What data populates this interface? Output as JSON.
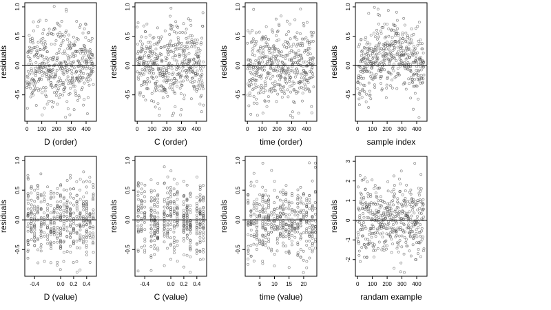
{
  "chart_data": [
    {
      "type": "scatter",
      "xlabel": "D (order)",
      "ylabel": "residuals",
      "xlim": [
        -15,
        470
      ],
      "ylim": [
        -0.95,
        1.07
      ],
      "xticks": [
        0,
        100,
        200,
        300,
        400
      ],
      "yticks": [
        -0.5,
        0.0,
        0.5,
        1.0
      ],
      "xtick_labels": [
        "0",
        "100",
        "200",
        "300",
        "400"
      ],
      "ytick_labels": [
        "-0.5",
        "0.0",
        "0.5",
        "1.0"
      ],
      "zero_line": true,
      "grid": false,
      "n": 450,
      "x_mode": "index",
      "bias": "none",
      "spread": 0.33,
      "seed": 11
    },
    {
      "type": "scatter",
      "xlabel": "C (order)",
      "ylabel": "residuals",
      "xlim": [
        -15,
        470
      ],
      "ylim": [
        -0.95,
        1.07
      ],
      "xticks": [
        0,
        100,
        200,
        300,
        400
      ],
      "yticks": [
        -0.5,
        0.0,
        0.5,
        1.0
      ],
      "xtick_labels": [
        "0",
        "100",
        "200",
        "300",
        "400"
      ],
      "ytick_labels": [
        "-0.5",
        "0.0",
        "0.5",
        "1.0"
      ],
      "zero_line": true,
      "grid": false,
      "n": 450,
      "x_mode": "index",
      "bias": "none",
      "spread": 0.33,
      "seed": 23
    },
    {
      "type": "scatter",
      "xlabel": "time (order)",
      "ylabel": "residuals",
      "xlim": [
        -15,
        470
      ],
      "ylim": [
        -0.95,
        1.07
      ],
      "xticks": [
        0,
        100,
        200,
        300,
        400
      ],
      "yticks": [
        -0.5,
        0.0,
        0.5,
        1.0
      ],
      "xtick_labels": [
        "0",
        "100",
        "200",
        "300",
        "400"
      ],
      "ytick_labels": [
        "-0.5",
        "0.0",
        "0.5",
        "1.0"
      ],
      "zero_line": true,
      "grid": false,
      "n": 450,
      "x_mode": "index",
      "bias": "none",
      "spread": 0.33,
      "seed": 37
    },
    {
      "type": "scatter",
      "xlabel": "sample index",
      "ylabel": "residuals",
      "xlim": [
        -15,
        470
      ],
      "ylim": [
        -0.95,
        1.07
      ],
      "xticks": [
        0,
        100,
        200,
        300,
        400
      ],
      "yticks": [
        -0.5,
        0.0,
        0.5,
        1.0
      ],
      "xtick_labels": [
        "0",
        "100",
        "200",
        "300",
        "400"
      ],
      "ytick_labels": [
        "-0.5",
        "0.0",
        "0.5",
        "1.0"
      ],
      "zero_line": true,
      "grid": false,
      "n": 450,
      "x_mode": "index",
      "bias": "hump",
      "spread": 0.3,
      "seed": 41
    },
    {
      "type": "scatter",
      "xlabel": "D (value)",
      "ylabel": "residuals",
      "xlim": [
        -0.55,
        0.55
      ],
      "ylim": [
        -0.95,
        1.07
      ],
      "xticks": [
        -0.4,
        0.0,
        0.2,
        0.4
      ],
      "yticks": [
        -0.5,
        0.0,
        0.5,
        1.0
      ],
      "xtick_labels": [
        "-0.4",
        "0.0",
        "0.2",
        "0.4"
      ],
      "ytick_labels": [
        "-0.5",
        "0.0",
        "0.5",
        "1.0"
      ],
      "zero_line": true,
      "grid": false,
      "n": 450,
      "x_mode": "values",
      "x_values": [
        -0.5,
        -0.45,
        -0.4,
        -0.35,
        -0.3,
        -0.25,
        -0.2,
        -0.15,
        -0.1,
        -0.05,
        0.0,
        0.05,
        0.1,
        0.15,
        0.2,
        0.25,
        0.3,
        0.35,
        0.4,
        0.45,
        0.5
      ],
      "bias": "none",
      "spread": 0.33,
      "seed": 53
    },
    {
      "type": "scatter",
      "xlabel": "C (value)",
      "ylabel": "residuals",
      "xlim": [
        -0.55,
        0.55
      ],
      "ylim": [
        -0.95,
        1.07
      ],
      "xticks": [
        -0.4,
        0.0,
        0.2,
        0.4
      ],
      "yticks": [
        -0.5,
        0.0,
        0.5,
        1.0
      ],
      "xtick_labels": [
        "-0.4",
        "0.0",
        "0.2",
        "0.4"
      ],
      "ytick_labels": [
        "-0.5",
        "0.0",
        "0.5",
        "1.0"
      ],
      "zero_line": true,
      "grid": false,
      "n": 450,
      "x_mode": "values",
      "x_values": [
        -0.5,
        -0.45,
        -0.4,
        -0.3,
        -0.25,
        -0.2,
        -0.1,
        -0.05,
        0.0,
        0.05,
        0.1,
        0.2,
        0.25,
        0.3,
        0.4,
        0.45,
        0.5
      ],
      "bias": "none",
      "spread": 0.33,
      "seed": 61
    },
    {
      "type": "scatter",
      "xlabel": "time (value)",
      "ylabel": "residuals",
      "xlim": [
        0,
        24.5
      ],
      "ylim": [
        -0.95,
        1.07
      ],
      "xticks": [
        5,
        10,
        15,
        20
      ],
      "yticks": [
        -0.5,
        0.0,
        0.5,
        1.0
      ],
      "xtick_labels": [
        "5",
        "10",
        "15",
        "20"
      ],
      "ytick_labels": [
        "-0.5",
        "0.0",
        "0.5",
        "1.0"
      ],
      "zero_line": true,
      "grid": false,
      "n": 450,
      "x_mode": "values",
      "x_values": [
        1,
        2,
        3,
        4,
        5,
        6,
        7,
        8,
        9,
        10,
        11,
        12,
        13,
        14,
        15,
        16,
        17,
        18,
        19,
        20,
        21,
        22,
        23,
        24
      ],
      "bias": "none",
      "spread": 0.33,
      "seed": 71
    },
    {
      "type": "scatter",
      "xlabel": "randam example",
      "ylabel": "residuals",
      "xlim": [
        -15,
        470
      ],
      "ylim": [
        -2.85,
        3.25
      ],
      "xticks": [
        0,
        100,
        200,
        300,
        400
      ],
      "yticks": [
        -2,
        -1,
        0,
        1,
        2,
        3
      ],
      "xtick_labels": [
        "0",
        "100",
        "200",
        "300",
        "400"
      ],
      "ytick_labels": [
        "-2",
        "-1",
        "0",
        "1",
        "2",
        "3"
      ],
      "zero_line": true,
      "grid": false,
      "n": 450,
      "x_mode": "index",
      "bias": "none",
      "spread": 1.0,
      "seed": 83
    }
  ]
}
